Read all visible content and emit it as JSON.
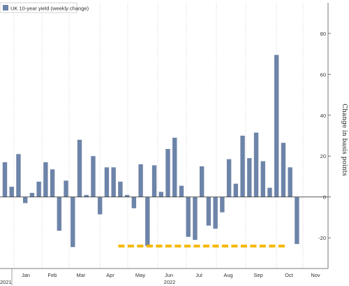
{
  "chart_data": {
    "type": "bar",
    "title": "",
    "xlabel": "",
    "ylabel": "Change in basis points",
    "ylim": [
      -35,
      95
    ],
    "y_ticks": [
      -20,
      0,
      20,
      40,
      60,
      80
    ],
    "y_axis_side": "right",
    "grid": "vertical dotted at month boundaries",
    "legend_position": "top-left",
    "series": [
      {
        "name": "UK 10-year yield (weekly change)",
        "color": "#6d84a9",
        "values": [
          17,
          5,
          21,
          -3,
          2,
          7.5,
          17,
          13.5,
          -16.5,
          8,
          -24.5,
          28,
          1,
          20,
          -8.5,
          14.5,
          14.5,
          7.5,
          1,
          -5.5,
          16,
          -24,
          15.5,
          2.5,
          23.5,
          29,
          5.5,
          -19.5,
          -21,
          15,
          -14,
          -15.5,
          -7.5,
          18.5,
          6.5,
          30,
          19,
          31.5,
          17.5,
          4.5,
          69.5,
          26.5,
          14.5,
          -23
        ]
      }
    ],
    "x_labels": [
      "Jan",
      "Feb",
      "Mar",
      "Apr",
      "May",
      "Jun",
      "Jul",
      "Aug",
      "Sep",
      "Oct",
      "Nov"
    ],
    "year_labels": [
      "2021",
      "2022"
    ],
    "annotation": {
      "type": "dashed-line",
      "color": "#f5b800",
      "y": -24,
      "from_bar": 17,
      "to_bar": 41
    }
  }
}
